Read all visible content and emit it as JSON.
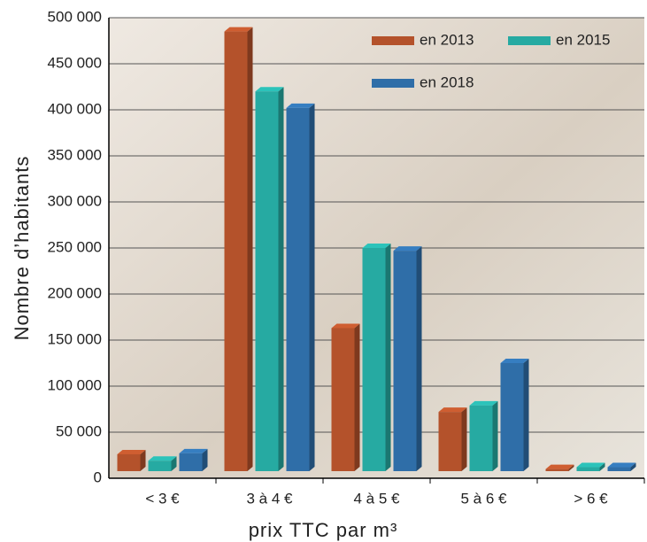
{
  "chart_data": {
    "type": "bar3d",
    "xlabel": "prix TTC par m³",
    "ylabel": "Nombre d’habitants",
    "categories": [
      "< 3 €",
      "3 à 4 €",
      "4 à 5 €",
      "5 à 6 €",
      "> 6 €"
    ],
    "series": [
      {
        "name": "en 2013",
        "color": "#b4522b",
        "values": [
          26000,
          485000,
          163000,
          72000,
          10000
        ]
      },
      {
        "name": "en 2015",
        "color": "#26aaa2",
        "values": [
          19000,
          420000,
          250000,
          79000,
          12000
        ]
      },
      {
        "name": "en 2018",
        "color": "#2f6ea8",
        "values": [
          27000,
          402000,
          247000,
          125000,
          12000
        ]
      }
    ],
    "ylim": [
      0,
      500000
    ],
    "yticks": [
      0,
      {
        "value": 50000,
        "label": "50 000"
      },
      {
        "value": 100000,
        "label": "100 000"
      },
      {
        "value": 150000,
        "label": "150 000"
      },
      {
        "value": 200000,
        "label": "200 000"
      },
      {
        "value": 250000,
        "label": "250 000"
      },
      {
        "value": 300000,
        "label": "300 000"
      },
      {
        "value": 350000,
        "label": "350 000"
      },
      {
        "value": 400000,
        "label": "400 000"
      },
      {
        "value": 450000,
        "label": "450 000"
      },
      {
        "value": 500000,
        "label": "500 000"
      }
    ],
    "grid": true,
    "legend": "top-right"
  }
}
